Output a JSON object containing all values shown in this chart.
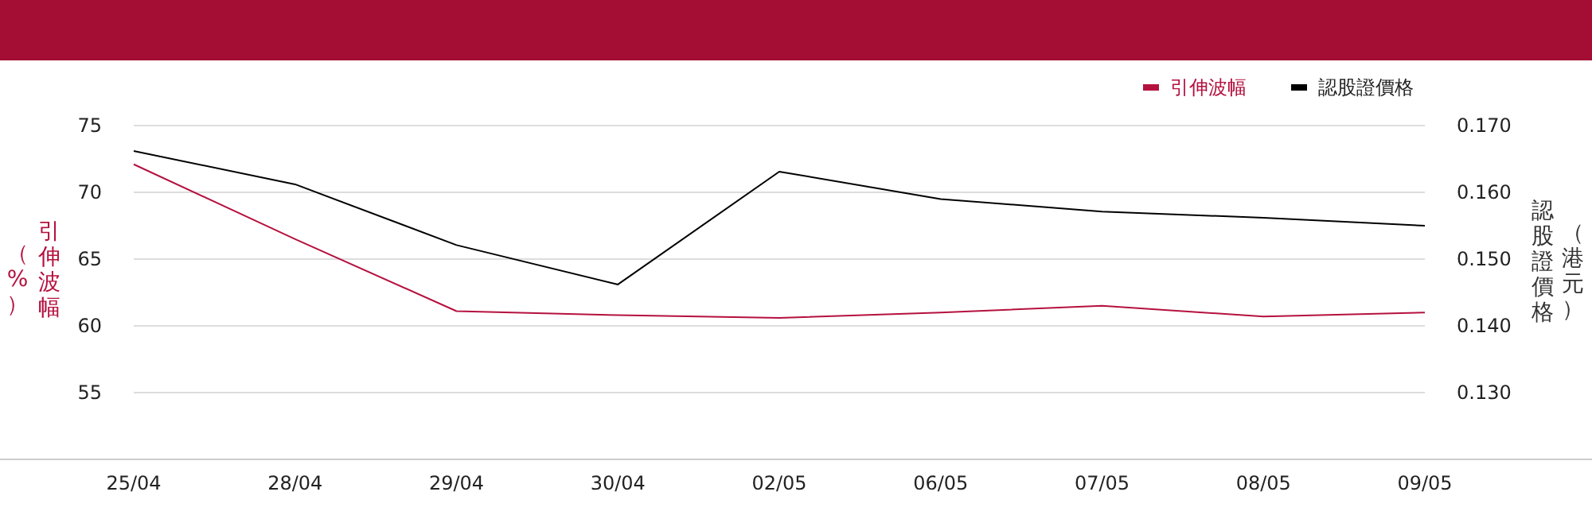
{
  "chart_data": {
    "type": "line",
    "categories": [
      "25/04",
      "28/04",
      "29/04",
      "30/04",
      "02/05",
      "06/05",
      "07/05",
      "08/05",
      "09/05"
    ],
    "series": [
      {
        "name": "引伸波幅",
        "color": "#b5113f",
        "values": [
          72.1,
          66.5,
          61.1,
          60.8,
          60.6,
          61.0,
          61.5,
          60.7,
          61.0
        ]
      },
      {
        "name": "認股證價格",
        "color": "#000000",
        "axis": "y2",
        "values": [
          0.1662,
          0.1612,
          0.1521,
          0.1462,
          0.1631,
          0.159,
          0.1571,
          0.1562,
          0.155
        ]
      }
    ],
    "ylabel": "引伸波幅（%）",
    "y2label": "認股證價格（港元）",
    "ylim": [
      50,
      75
    ],
    "yticks": [
      55,
      60,
      65,
      70,
      75
    ],
    "y2lim": [
      0.12,
      0.17
    ],
    "y2ticks": [
      {
        "value": 0.13,
        "label": "0.130"
      },
      {
        "value": 0.14,
        "label": "0.140"
      },
      {
        "value": 0.15,
        "label": "0.150"
      },
      {
        "value": 0.16,
        "label": "0.160"
      },
      {
        "value": 0.17,
        "label": "0.170"
      }
    ],
    "grid": "y",
    "legend": "top right",
    "marker": "none",
    "line_style": "solid"
  }
}
